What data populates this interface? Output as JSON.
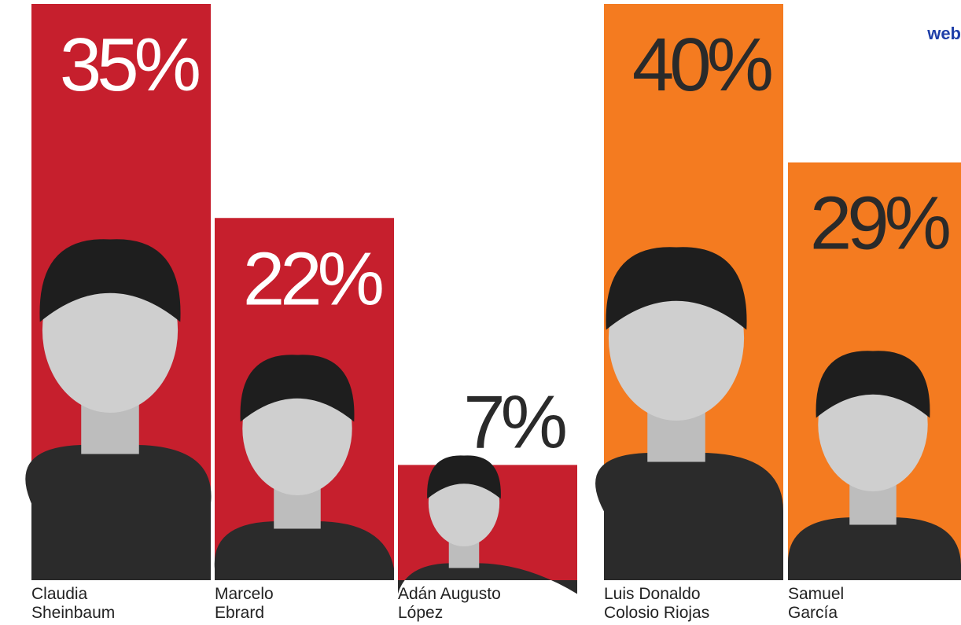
{
  "chart_data": [
    {
      "type": "bar",
      "categories": [
        [
          "Claudia",
          "Sheinbaum"
        ],
        [
          "Marcelo",
          "Ebrard"
        ],
        [
          "Adán Augusto",
          "López"
        ]
      ],
      "values": [
        35,
        22,
        7
      ],
      "value_labels": [
        "35%",
        "22%",
        "7%"
      ],
      "color": "#c61f2d",
      "label_color": "#ffffff",
      "ylim": [
        0,
        35
      ]
    },
    {
      "type": "bar",
      "categories": [
        [
          "Luis Donaldo",
          "Colosio Riojas"
        ],
        [
          "Samuel",
          "García"
        ]
      ],
      "values": [
        40,
        29
      ],
      "value_labels": [
        "40%",
        "29%"
      ],
      "color": "#f47b20",
      "label_color": "#2a2a2a",
      "ylim": [
        0,
        40
      ],
      "annotation": "web"
    }
  ]
}
